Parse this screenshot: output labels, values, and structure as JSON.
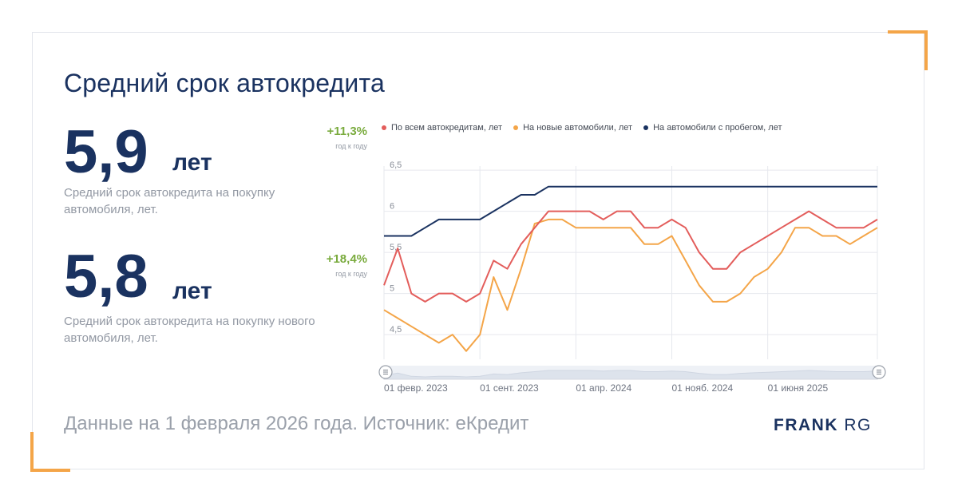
{
  "title": "Средний срок автокредита",
  "stats": [
    {
      "value": "5,9",
      "unit": "лет",
      "description": "Средний срок автокредита на покупку автомобиля, лет.",
      "delta": "+11,3%",
      "delta_label": "год к году"
    },
    {
      "value": "5,8",
      "unit": "лет",
      "description": "Средний срок автокредита на покупку нового автомобиля, лет.",
      "delta": "+18,4%",
      "delta_label": "год к году"
    }
  ],
  "footer": "Данные на 1 февраля 2026 года. Источник: еКредит",
  "brand": {
    "bold": "FRANK",
    "light": "RG"
  },
  "colors": {
    "accent": "#f4a548",
    "navy": "#1a3260",
    "positive": "#7aab3e"
  },
  "chart_data": {
    "type": "line",
    "x_tick_labels": [
      "01 февр. 2023",
      "01 сент. 2023",
      "01 апр. 2024",
      "01 нояб. 2024",
      "01 июня 2025"
    ],
    "y_tick_labels": [
      "4,5",
      "5",
      "5,5",
      "6",
      "6,5"
    ],
    "y_ticks": [
      4.5,
      5,
      5.5,
      6,
      6.5
    ],
    "ylim": [
      4.2,
      6.55
    ],
    "grid": true,
    "legend_position": "top",
    "series": [
      {
        "name": "По всем автокредитам, лет",
        "color": "#e35d5b",
        "values": [
          5.1,
          5.55,
          5.0,
          4.9,
          5.0,
          5.0,
          4.9,
          5.0,
          5.4,
          5.3,
          5.6,
          5.8,
          6.0,
          6.0,
          6.0,
          6.0,
          5.9,
          6.0,
          6.0,
          5.8,
          5.8,
          5.9,
          5.8,
          5.5,
          5.3,
          5.3,
          5.5,
          5.6,
          5.7,
          5.8,
          5.9,
          6.0,
          5.9,
          5.8,
          5.8,
          5.8,
          5.9
        ]
      },
      {
        "name": "На новые автомобили, лет",
        "color": "#f4a548",
        "values": [
          4.8,
          4.7,
          4.6,
          4.5,
          4.4,
          4.5,
          4.3,
          4.5,
          5.2,
          4.8,
          5.3,
          5.85,
          5.9,
          5.9,
          5.8,
          5.8,
          5.8,
          5.8,
          5.8,
          5.6,
          5.6,
          5.7,
          5.4,
          5.1,
          4.9,
          4.9,
          5.0,
          5.2,
          5.3,
          5.5,
          5.8,
          5.8,
          5.7,
          5.7,
          5.6,
          5.7,
          5.8
        ]
      },
      {
        "name": "На автомобили с пробегом, лет",
        "color": "#1a3260",
        "values": [
          5.7,
          5.7,
          5.7,
          5.8,
          5.9,
          5.9,
          5.9,
          5.9,
          6.0,
          6.1,
          6.2,
          6.2,
          6.3,
          6.3,
          6.3,
          6.3,
          6.3,
          6.3,
          6.3,
          6.3,
          6.3,
          6.3,
          6.3,
          6.3,
          6.3,
          6.3,
          6.3,
          6.3,
          6.3,
          6.3,
          6.3,
          6.3,
          6.3,
          6.3,
          6.3,
          6.3,
          6.3
        ]
      }
    ]
  }
}
